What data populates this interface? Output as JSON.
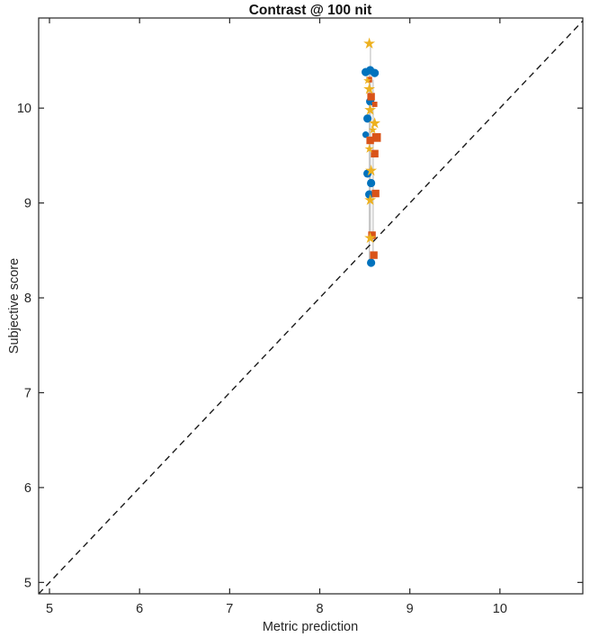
{
  "window": {
    "background_color": "#ffffff"
  },
  "chart_data": {
    "type": "scatter",
    "title": "Contrast @ 100 nit",
    "xlabel": "Metric prediction",
    "ylabel": "Subjective score",
    "xlim": [
      4.88,
      10.92
    ],
    "ylim": [
      4.88,
      10.95
    ],
    "xticks": [
      5,
      6,
      7,
      8,
      9,
      10
    ],
    "yticks": [
      5,
      6,
      7,
      8,
      9,
      10
    ],
    "grid": false,
    "box": true,
    "tick_direction": "in",
    "axis_color": "#262626",
    "tick_label_color": "#262626",
    "reference_line": {
      "meaning": "identity-line-y-equals-x",
      "style": "dashed",
      "color": "#1a1a1a",
      "from": [
        4.88,
        4.88
      ],
      "to": [
        10.92,
        10.92
      ]
    },
    "connector_line_color": "#c3c3c3",
    "series": [
      {
        "name": "circle-markers",
        "marker": "circle",
        "color": "#0072BD",
        "points": [
          [
            8.51,
            10.38
          ],
          [
            8.56,
            10.4
          ],
          [
            8.61,
            10.37
          ],
          [
            8.56,
            10.07
          ],
          [
            8.53,
            9.89
          ],
          [
            8.51,
            9.72,
            0.8
          ],
          [
            8.53,
            9.31
          ],
          [
            8.57,
            9.21
          ],
          [
            8.55,
            9.09
          ],
          [
            8.57,
            8.37
          ]
        ]
      },
      {
        "name": "square-markers",
        "marker": "square",
        "color": "#D95319",
        "points": [
          [
            8.55,
            10.3,
            0.75
          ],
          [
            8.57,
            10.12
          ],
          [
            8.61,
            10.04,
            0.7
          ],
          [
            8.63,
            9.69,
            1.15
          ],
          [
            8.56,
            9.66
          ],
          [
            8.61,
            9.52
          ],
          [
            8.62,
            9.1
          ],
          [
            8.58,
            8.66
          ],
          [
            8.6,
            8.45
          ]
        ]
      },
      {
        "name": "star-markers",
        "marker": "pentagram",
        "color": "#EDB120",
        "points": [
          [
            8.55,
            10.68
          ],
          [
            8.53,
            10.29,
            0.7
          ],
          [
            8.55,
            10.2
          ],
          [
            8.56,
            9.98
          ],
          [
            8.61,
            9.84
          ],
          [
            8.59,
            9.77,
            0.75
          ],
          [
            8.55,
            9.57,
            0.8
          ],
          [
            8.57,
            9.34
          ],
          [
            8.56,
            9.03
          ],
          [
            8.56,
            8.63
          ]
        ]
      }
    ]
  }
}
